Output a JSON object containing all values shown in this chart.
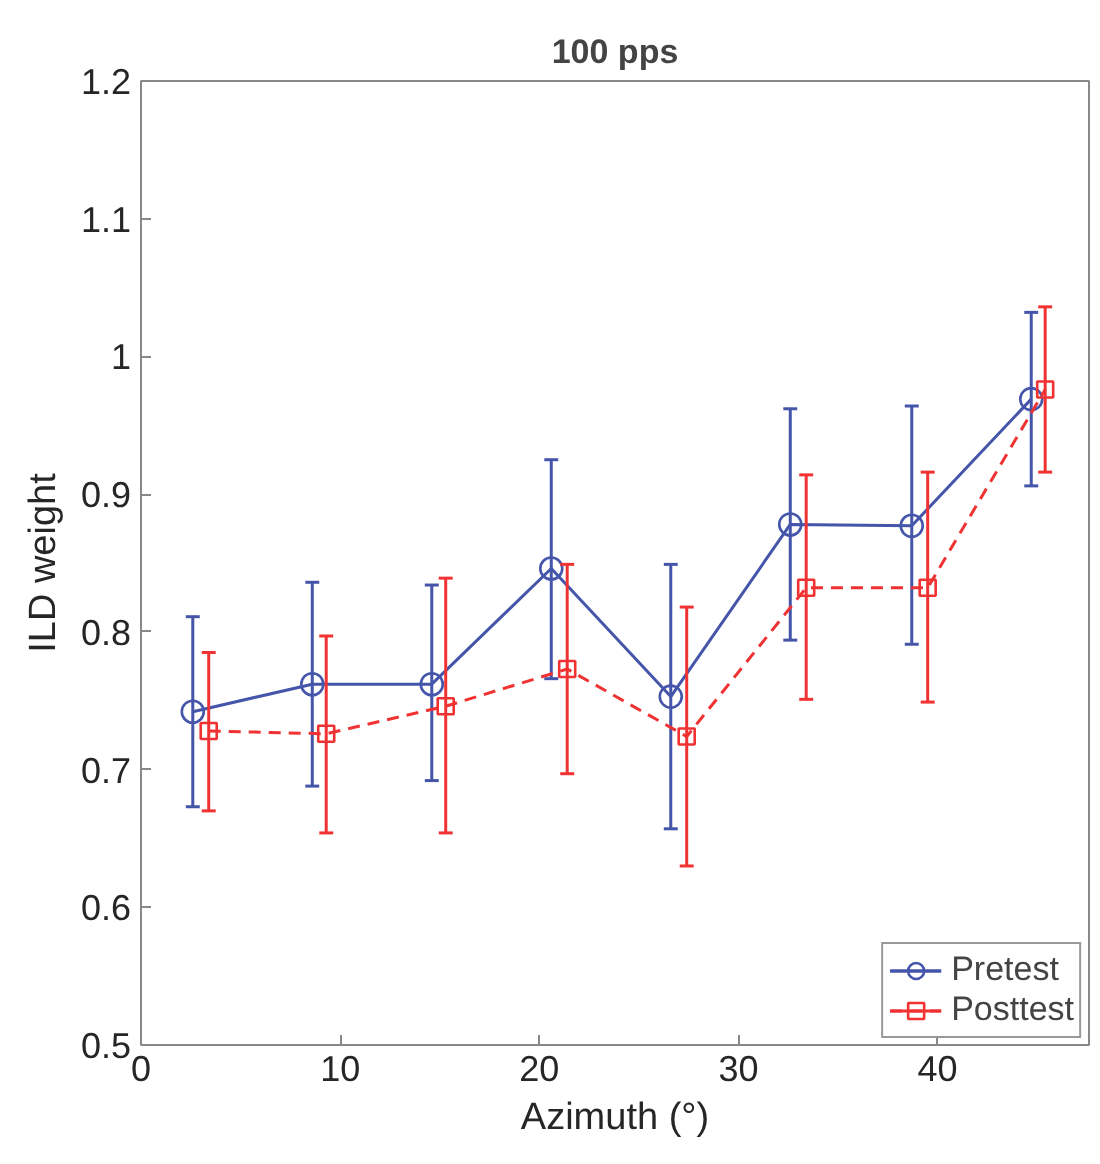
{
  "chart_data": {
    "type": "line",
    "title": "100 pps",
    "xlabel": "Azimuth (°)",
    "ylabel": "ILD weight",
    "xlim": [
      0,
      47.6
    ],
    "xticks": [
      0,
      10,
      20,
      30,
      40
    ],
    "ylim": [
      0.5,
      1.2
    ],
    "yticks": [
      0.5,
      0.6,
      0.7,
      0.8,
      0.9,
      1,
      1.1,
      1.2
    ],
    "grid": false,
    "legend": "bottom right",
    "series": [
      {
        "name": "Pretest",
        "color": "#4455aa",
        "marker": "circle",
        "line_style": "solid",
        "x": [
          2.6,
          8.6,
          14.6,
          20.6,
          26.6,
          32.6,
          38.7,
          44.7
        ],
        "values": [
          0.742,
          0.762,
          0.762,
          0.846,
          0.753,
          0.878,
          0.877,
          0.969
        ],
        "errors": [
          [
            0.673,
            0.811
          ],
          [
            0.688,
            0.836
          ],
          [
            0.692,
            0.834
          ],
          [
            0.766,
            0.925
          ],
          [
            0.657,
            0.849
          ],
          [
            0.794,
            0.962
          ],
          [
            0.791,
            0.964
          ],
          [
            0.906,
            1.032
          ]
        ]
      },
      {
        "name": "Posttest",
        "color": "#f03232",
        "marker": "square",
        "line_style": "dashed",
        "x": [
          3.4,
          9.3,
          15.3,
          21.4,
          27.4,
          33.4,
          39.5,
          45.4
        ],
        "values": [
          0.728,
          0.726,
          0.746,
          0.773,
          0.724,
          0.832,
          0.832,
          0.976
        ],
        "errors": [
          [
            0.67,
            0.785
          ],
          [
            0.654,
            0.797
          ],
          [
            0.654,
            0.839
          ],
          [
            0.697,
            0.849
          ],
          [
            0.63,
            0.818
          ],
          [
            0.751,
            0.914
          ],
          [
            0.749,
            0.916
          ],
          [
            0.916,
            1.036
          ]
        ]
      }
    ]
  }
}
